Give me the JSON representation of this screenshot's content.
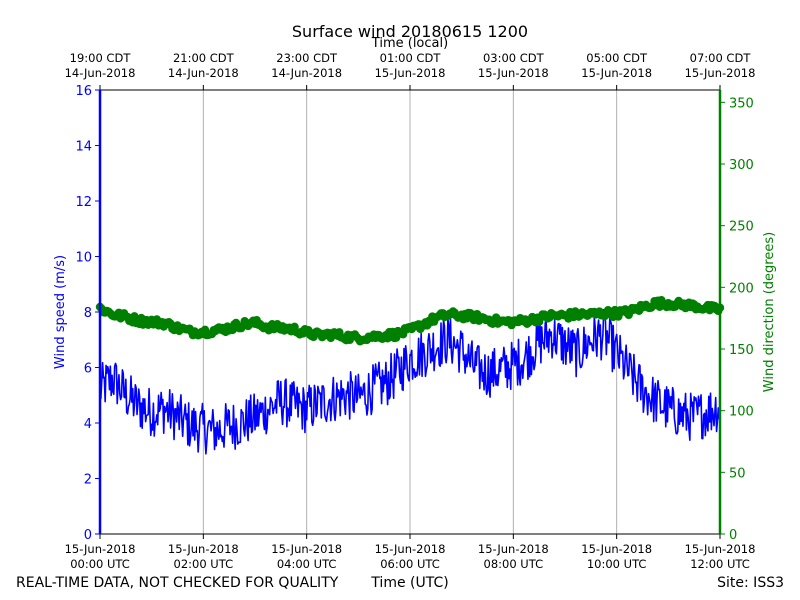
{
  "chart_data": {
    "type": "line",
    "title": "Surface wind 20180615 1200",
    "top_axis_label": "Time (local)",
    "xlabel": "Time (UTC)",
    "ylabel_left": "Wind speed (m/s)",
    "ylabel_right": "Wind direction (degrees)",
    "ylim_left": [
      0,
      16
    ],
    "ylim_right": [
      0,
      360
    ],
    "xlim_hours_utc": [
      0,
      12
    ],
    "grid": "vertical",
    "colors": {
      "speed": "#0000ff",
      "direction": "#008000",
      "text": "#000000",
      "grid": "#b0b0b0"
    },
    "left_ticks": [
      "0",
      "2",
      "4",
      "6",
      "8",
      "10",
      "12",
      "14",
      "16"
    ],
    "right_ticks": [
      "0",
      "50",
      "100",
      "150",
      "200",
      "250",
      "300",
      "350"
    ],
    "bottom_ticks": [
      {
        "hour": 0,
        "date": "15-Jun-2018",
        "time": "00:00 UTC"
      },
      {
        "hour": 2,
        "date": "15-Jun-2018",
        "time": "02:00 UTC"
      },
      {
        "hour": 4,
        "date": "15-Jun-2018",
        "time": "04:00 UTC"
      },
      {
        "hour": 6,
        "date": "15-Jun-2018",
        "time": "06:00 UTC"
      },
      {
        "hour": 8,
        "date": "15-Jun-2018",
        "time": "08:00 UTC"
      },
      {
        "hour": 10,
        "date": "15-Jun-2018",
        "time": "10:00 UTC"
      },
      {
        "hour": 12,
        "date": "15-Jun-2018",
        "time": "12:00 UTC"
      }
    ],
    "top_ticks": [
      {
        "hour": 0,
        "time": "19:00 CDT",
        "date": "14-Jun-2018"
      },
      {
        "hour": 2,
        "time": "21:00 CDT",
        "date": "14-Jun-2018"
      },
      {
        "hour": 4,
        "time": "23:00 CDT",
        "date": "14-Jun-2018"
      },
      {
        "hour": 6,
        "time": "01:00 CDT",
        "date": "15-Jun-2018"
      },
      {
        "hour": 8,
        "time": "03:00 CDT",
        "date": "15-Jun-2018"
      },
      {
        "hour": 10,
        "time": "05:00 CDT",
        "date": "15-Jun-2018"
      },
      {
        "hour": 12,
        "time": "07:00 CDT",
        "date": "15-Jun-2018"
      }
    ],
    "series": [
      {
        "name": "Wind speed",
        "axis": "left",
        "style": "line",
        "x_hours": [
          0,
          0.25,
          0.5,
          0.75,
          1,
          1.25,
          1.5,
          1.75,
          2,
          2.25,
          2.5,
          2.75,
          3,
          3.25,
          3.5,
          3.75,
          4,
          4.25,
          4.5,
          4.75,
          5,
          5.25,
          5.5,
          5.75,
          6,
          6.25,
          6.5,
          6.75,
          7,
          7.25,
          7.5,
          7.75,
          8,
          8.25,
          8.5,
          8.75,
          9,
          9.25,
          9.5,
          9.75,
          10,
          10.25,
          10.5,
          10.75,
          11,
          11.25,
          11.5,
          11.75,
          12
        ],
        "values": [
          5.2,
          5.6,
          5.0,
          4.6,
          4.4,
          4.5,
          4.2,
          3.9,
          3.8,
          3.7,
          3.9,
          4.0,
          4.2,
          4.5,
          4.8,
          4.6,
          4.5,
          4.7,
          4.9,
          5.0,
          4.9,
          5.2,
          5.4,
          5.8,
          6.3,
          6.5,
          6.8,
          7.0,
          6.6,
          6.0,
          5.8,
          5.9,
          6.1,
          6.4,
          6.9,
          7.2,
          6.8,
          6.5,
          7.0,
          7.2,
          6.5,
          5.8,
          5.2,
          4.8,
          4.5,
          4.3,
          4.2,
          4.4,
          4.6
        ],
        "noise_amplitude": 0.9
      },
      {
        "name": "Wind direction",
        "axis": "right",
        "style": "markers",
        "x_hours": [
          0,
          0.25,
          0.5,
          0.75,
          1,
          1.25,
          1.5,
          1.75,
          2,
          2.25,
          2.5,
          2.75,
          3,
          3.25,
          3.5,
          3.75,
          4,
          4.25,
          4.5,
          4.75,
          5,
          5.25,
          5.5,
          5.75,
          6,
          6.25,
          6.5,
          6.75,
          7,
          7.25,
          7.5,
          7.75,
          8,
          8.25,
          8.5,
          8.75,
          9,
          9.25,
          9.5,
          9.75,
          10,
          10.25,
          10.5,
          10.75,
          11,
          11.25,
          11.5,
          11.75,
          12
        ],
        "values": [
          183,
          178,
          176,
          173,
          172,
          171,
          167,
          164,
          164,
          165,
          167,
          170,
          171,
          168,
          167,
          166,
          163,
          161,
          162,
          160,
          159,
          160,
          161,
          162,
          165,
          170,
          175,
          178,
          177,
          176,
          174,
          172,
          172,
          173,
          175,
          177,
          177,
          178,
          178,
          179,
          179,
          180,
          184,
          187,
          187,
          186,
          185,
          183,
          182
        ],
        "noise_amplitude": 3
      }
    ]
  },
  "footer": {
    "disclaimer": "REAL-TIME DATA, NOT CHECKED FOR QUALITY",
    "site": "Site: ISS3"
  }
}
